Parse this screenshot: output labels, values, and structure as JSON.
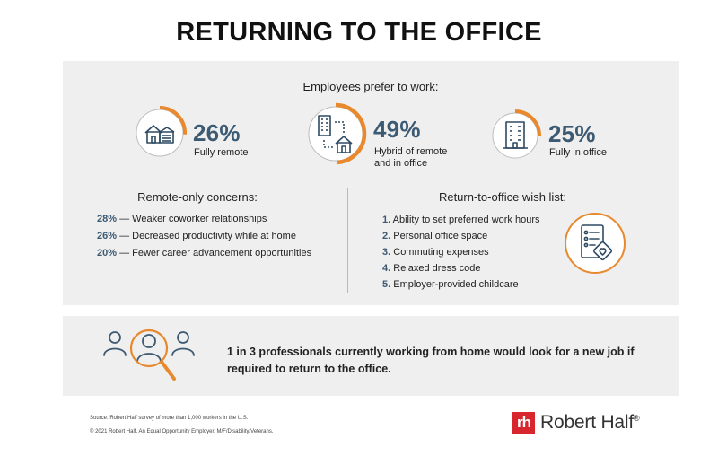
{
  "title": "RETURNING TO THE OFFICE",
  "preference": {
    "heading": "Employees prefer to work:",
    "items": [
      {
        "pct": "26%",
        "label_lines": [
          "Fully remote"
        ],
        "value": 26,
        "icon": "house-garage-icon"
      },
      {
        "pct": "49%",
        "label_lines": [
          "Hybrid of remote",
          "and in office"
        ],
        "value": 49,
        "icon": "building-and-house-icon"
      },
      {
        "pct": "25%",
        "label_lines": [
          "Fully in office"
        ],
        "value": 25,
        "icon": "office-building-icon"
      }
    ]
  },
  "concerns": {
    "title": "Remote-only concerns:",
    "items": [
      {
        "pct": "28%",
        "text": "— Weaker coworker relationships"
      },
      {
        "pct": "26%",
        "text": "— Decreased productivity while at home"
      },
      {
        "pct": "20%",
        "text": "— Fewer career advancement opportunities"
      }
    ]
  },
  "wishlist": {
    "title": "Return-to-office wish list:",
    "icon": "checklist-heart-icon",
    "items": [
      {
        "num": "1.",
        "text": "Ability to set preferred work hours"
      },
      {
        "num": "2.",
        "text": "Personal office space"
      },
      {
        "num": "3.",
        "text": "Commuting expenses"
      },
      {
        "num": "4.",
        "text": "Relaxed dress code"
      },
      {
        "num": "5.",
        "text": "Employer-provided childcare"
      }
    ]
  },
  "bottom": {
    "icon": "people-magnifier-icon",
    "text": "1 in 3 professionals currently working from home would look for a new job if required to return to the office."
  },
  "footer": {
    "source": "Source: Robert Half survey of more than 1,000 workers in the U.S.",
    "copyright": "© 2021 Robert Half. An Equal Opportunity Employer. M/F/Disability/Veterans.",
    "logo_mark": "rh",
    "logo_name": "Robert Half",
    "logo_reg": "®"
  },
  "colors": {
    "accent": "#e8892d",
    "navy": "#3d5a73",
    "panel": "#efefef",
    "brand_red": "#d7262e"
  }
}
